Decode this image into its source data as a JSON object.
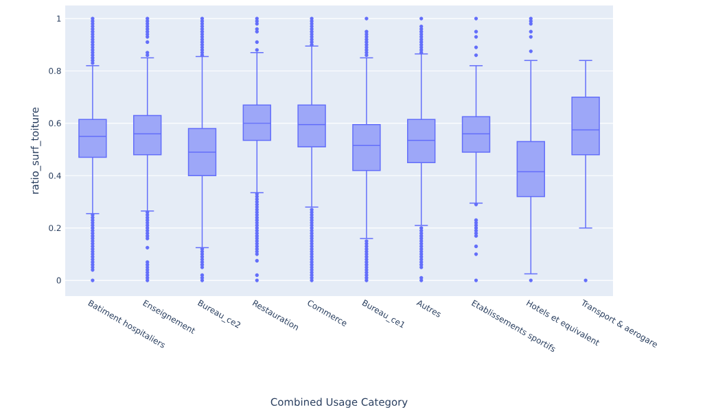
{
  "chart_data": {
    "type": "box",
    "xlabel": "Combined Usage Category",
    "ylabel": "ratio_surf_toiture",
    "categories": [
      "Batiment hospitaliers",
      "Enseignement",
      "Bureau_ce2",
      "Restauration",
      "Commerce",
      "Bureau_ce1",
      "Autres",
      "Etablissements sportifs",
      "Hotels et equivalent",
      "Transport & aerogare"
    ],
    "color": "#636efa",
    "grid": "y",
    "marker": "circle",
    "ylim": [
      -0.06,
      1.05
    ],
    "yticks": [
      0,
      0.2,
      0.4,
      0.6,
      0.8,
      1
    ],
    "boxes": [
      {
        "low": 0.255,
        "q1": 0.47,
        "median": 0.55,
        "q3": 0.615,
        "high": 0.82,
        "outliers": [
          1,
          0.99,
          0.98,
          0.97,
          0.96,
          0.95,
          0.94,
          0.93,
          0.92,
          0.91,
          0.9,
          0.89,
          0.88,
          0.87,
          0.86,
          0.85,
          0.84,
          0.83,
          0.25,
          0.24,
          0.23,
          0.22,
          0.21,
          0.2,
          0.19,
          0.18,
          0.17,
          0.16,
          0.15,
          0.14,
          0.13,
          0.12,
          0.11,
          0.1,
          0.09,
          0.08,
          0.07,
          0.06,
          0.05,
          0.04,
          0
        ]
      },
      {
        "low": 0.265,
        "q1": 0.48,
        "median": 0.56,
        "q3": 0.63,
        "high": 0.85,
        "outliers": [
          1,
          0.99,
          0.98,
          0.97,
          0.96,
          0.95,
          0.94,
          0.93,
          0.91,
          0.87,
          0.86,
          0.26,
          0.25,
          0.24,
          0.23,
          0.22,
          0.21,
          0.2,
          0.19,
          0.18,
          0.17,
          0.16,
          0.125,
          0.07,
          0.06,
          0.05,
          0.04,
          0.03,
          0.02,
          0.01,
          0
        ]
      },
      {
        "low": 0.125,
        "q1": 0.4,
        "median": 0.49,
        "q3": 0.58,
        "high": 0.855,
        "outliers": [
          1,
          0.99,
          0.98,
          0.97,
          0.96,
          0.95,
          0.94,
          0.93,
          0.92,
          0.91,
          0.9,
          0.89,
          0.88,
          0.87,
          0.86,
          0.12,
          0.11,
          0.1,
          0.09,
          0.08,
          0.07,
          0.06,
          0.05,
          0.02,
          0.01,
          0
        ]
      },
      {
        "low": 0.335,
        "q1": 0.535,
        "median": 0.6,
        "q3": 0.67,
        "high": 0.87,
        "outliers": [
          1,
          0.99,
          0.98,
          0.96,
          0.95,
          0.91,
          0.88,
          0.33,
          0.32,
          0.31,
          0.3,
          0.29,
          0.28,
          0.27,
          0.26,
          0.25,
          0.24,
          0.23,
          0.22,
          0.21,
          0.2,
          0.19,
          0.18,
          0.17,
          0.16,
          0.15,
          0.14,
          0.13,
          0.12,
          0.11,
          0.1,
          0.075,
          0.02,
          0
        ]
      },
      {
        "low": 0.28,
        "q1": 0.51,
        "median": 0.595,
        "q3": 0.67,
        "high": 0.895,
        "outliers": [
          1,
          0.99,
          0.98,
          0.97,
          0.96,
          0.95,
          0.94,
          0.93,
          0.92,
          0.91,
          0.9,
          0.27,
          0.26,
          0.25,
          0.24,
          0.23,
          0.22,
          0.21,
          0.2,
          0.19,
          0.18,
          0.17,
          0.16,
          0.15,
          0.14,
          0.13,
          0.12,
          0.11,
          0.1,
          0.09,
          0.08,
          0.07,
          0.06,
          0.05,
          0.04,
          0.03,
          0.02,
          0.01,
          0
        ]
      },
      {
        "low": 0.16,
        "q1": 0.42,
        "median": 0.515,
        "q3": 0.595,
        "high": 0.85,
        "outliers": [
          1,
          0.95,
          0.94,
          0.93,
          0.92,
          0.91,
          0.9,
          0.89,
          0.88,
          0.87,
          0.86,
          0.15,
          0.14,
          0.13,
          0.12,
          0.11,
          0.1,
          0.09,
          0.08,
          0.07,
          0.06,
          0.05,
          0.04,
          0.03,
          0.02,
          0.01,
          0
        ]
      },
      {
        "low": 0.21,
        "q1": 0.45,
        "median": 0.535,
        "q3": 0.615,
        "high": 0.865,
        "outliers": [
          1,
          0.97,
          0.96,
          0.95,
          0.94,
          0.93,
          0.92,
          0.91,
          0.9,
          0.89,
          0.88,
          0.87,
          0.2,
          0.19,
          0.18,
          0.17,
          0.16,
          0.15,
          0.14,
          0.13,
          0.12,
          0.11,
          0.1,
          0.09,
          0.08,
          0.07,
          0.06,
          0.05,
          0.01,
          0
        ]
      },
      {
        "low": 0.295,
        "q1": 0.49,
        "median": 0.56,
        "q3": 0.625,
        "high": 0.82,
        "outliers": [
          1,
          0.95,
          0.93,
          0.89,
          0.86,
          0.29,
          0.23,
          0.22,
          0.21,
          0.2,
          0.19,
          0.18,
          0.17,
          0.13,
          0.1,
          0
        ]
      },
      {
        "low": 0.025,
        "q1": 0.32,
        "median": 0.415,
        "q3": 0.53,
        "high": 0.84,
        "outliers": [
          1,
          0.99,
          0.98,
          0.95,
          0.93,
          0.875,
          0
        ]
      },
      {
        "low": 0.2,
        "q1": 0.48,
        "median": 0.575,
        "q3": 0.7,
        "high": 0.84,
        "outliers": [
          0
        ]
      }
    ]
  }
}
